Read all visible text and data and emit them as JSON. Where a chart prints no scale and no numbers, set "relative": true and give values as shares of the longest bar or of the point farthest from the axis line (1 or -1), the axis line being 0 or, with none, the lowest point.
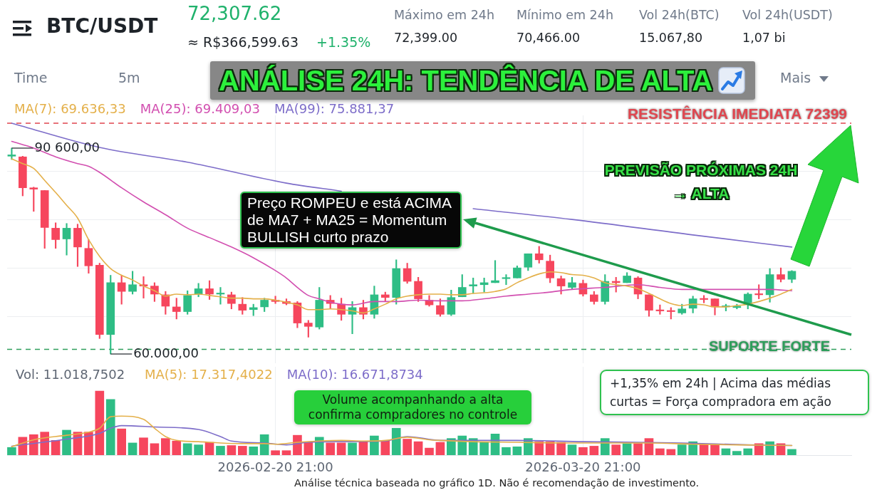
{
  "chart_data": [
    {
      "type": "candlestick",
      "title": "ANÁLISE 24H: TENDÊNCIA DE ALTA",
      "subtitle": "BTC/USDT",
      "x": [
        "2026-01-27T21:00",
        "2026-01-28T21:00",
        "2026-01-29T21:00",
        "2026-01-30T21:00",
        "2026-01-31T21:00",
        "2026-02-01T21:00",
        "2026-02-02T21:00",
        "2026-02-03T21:00",
        "2026-02-04T21:00",
        "2026-02-05T21:00",
        "2026-02-06T21:00",
        "2026-02-07T21:00",
        "2026-02-08T21:00",
        "2026-02-09T21:00",
        "2026-02-10T21:00",
        "2026-02-11T21:00",
        "2026-02-12T21:00",
        "2026-02-13T21:00",
        "2026-02-14T21:00",
        "2026-02-15T21:00",
        "2026-02-16T21:00",
        "2026-02-17T21:00",
        "2026-02-18T21:00",
        "2026-02-19T21:00",
        "2026-02-20T21:00",
        "2026-02-21T21:00",
        "2026-02-22T21:00",
        "2026-02-23T21:00",
        "2026-02-24T21:00",
        "2026-02-25T21:00",
        "2026-02-26T21:00",
        "2026-02-27T21:00",
        "2026-02-28T21:00",
        "2026-03-01T21:00",
        "2026-03-02T21:00",
        "2026-03-03T21:00",
        "2026-03-04T21:00",
        "2026-03-05T21:00",
        "2026-03-06T21:00",
        "2026-03-07T21:00",
        "2026-03-08T21:00",
        "2026-03-09T21:00",
        "2026-03-10T21:00",
        "2026-03-11T21:00",
        "2026-03-12T21:00",
        "2026-03-13T21:00",
        "2026-03-14T21:00",
        "2026-03-15T21:00",
        "2026-03-16T21:00",
        "2026-03-17T21:00",
        "2026-03-18T21:00",
        "2026-03-19T21:00",
        "2026-03-20T21:00",
        "2026-03-21T21:00",
        "2026-03-22T21:00",
        "2026-03-23T21:00",
        "2026-03-24T21:00",
        "2026-03-25T21:00",
        "2026-03-26T21:00",
        "2026-03-27T21:00",
        "2026-03-28T21:00",
        "2026-03-29T21:00",
        "2026-03-30T21:00",
        "2026-03-31T21:00",
        "2026-04-01T21:00",
        "2026-04-02T21:00",
        "2026-04-03T21:00",
        "2026-04-04T21:00",
        "2026-04-05T21:00",
        "2026-04-06T21:00",
        "2026-04-07T21:00",
        "2026-04-08T21:00"
      ],
      "ohlc": [
        [
          89400,
          90600,
          88900,
          89600
        ],
        [
          89300,
          89400,
          83500,
          84700
        ],
        [
          84700,
          84800,
          81200,
          84500
        ],
        [
          84300,
          84300,
          75700,
          78800
        ],
        [
          78700,
          79500,
          75700,
          77000
        ],
        [
          77100,
          79400,
          74700,
          78700
        ],
        [
          78700,
          79300,
          73000,
          75900
        ],
        [
          75700,
          77000,
          72000,
          73100
        ],
        [
          73200,
          73500,
          62300,
          62900
        ],
        [
          62900,
          71700,
          60000,
          70600
        ],
        [
          70600,
          71700,
          67400,
          69300
        ],
        [
          69300,
          72300,
          68900,
          70300
        ],
        [
          70300,
          71500,
          68300,
          70100
        ],
        [
          70100,
          70600,
          67800,
          68900
        ],
        [
          68800,
          69300,
          65900,
          67100
        ],
        [
          67000,
          68300,
          65200,
          66300
        ],
        [
          66300,
          69400,
          65900,
          68700
        ],
        [
          68900,
          70500,
          68500,
          69700
        ],
        [
          69700,
          70900,
          68100,
          68900
        ],
        [
          68900,
          69900,
          67400,
          69000
        ],
        [
          68800,
          69200,
          66700,
          67500
        ],
        [
          67400,
          68400,
          65900,
          66500
        ],
        [
          66600,
          67400,
          65700,
          66900
        ],
        [
          67000,
          68300,
          66300,
          68000
        ],
        [
          68000,
          68600,
          67500,
          67800
        ],
        [
          67800,
          68200,
          67300,
          67500
        ],
        [
          67600,
          67800,
          63900,
          64600
        ],
        [
          64600,
          65000,
          62500,
          64100
        ],
        [
          64000,
          69900,
          63700,
          68000
        ],
        [
          68000,
          68700,
          66700,
          67500
        ],
        [
          67400,
          68300,
          65000,
          65900
        ],
        [
          65900,
          67800,
          63000,
          66900
        ],
        [
          66900,
          68000,
          65200,
          65900
        ],
        [
          65900,
          70100,
          65300,
          68800
        ],
        [
          68800,
          69200,
          67800,
          68400
        ],
        [
          68400,
          74000,
          67400,
          72700
        ],
        [
          72700,
          73500,
          70500,
          70800
        ],
        [
          70800,
          71400,
          67800,
          68200
        ],
        [
          68000,
          68700,
          67100,
          67300
        ],
        [
          67200,
          68200,
          65600,
          65900
        ],
        [
          65900,
          69500,
          65700,
          68400
        ],
        [
          68500,
          71800,
          68500,
          69900
        ],
        [
          70100,
          71300,
          69000,
          70300
        ],
        [
          70300,
          71300,
          69200,
          70600
        ],
        [
          70600,
          73900,
          70600,
          70900
        ],
        [
          71200,
          71800,
          70300,
          71300
        ],
        [
          71300,
          73100,
          71300,
          72800
        ],
        [
          72900,
          74900,
          72400,
          74900
        ],
        [
          74900,
          76000,
          73500,
          74000
        ],
        [
          73800,
          74700,
          70600,
          71300
        ],
        [
          71200,
          71600,
          68900,
          70100
        ],
        [
          69900,
          71400,
          69600,
          70600
        ],
        [
          70500,
          71000,
          68600,
          68900
        ],
        [
          68800,
          69300,
          67400,
          67800
        ],
        [
          67800,
          71800,
          67400,
          70800
        ],
        [
          70800,
          71400,
          69200,
          70600
        ],
        [
          70600,
          72100,
          70600,
          71600
        ],
        [
          71300,
          71500,
          68200,
          68900
        ],
        [
          68800,
          68800,
          65600,
          66500
        ],
        [
          66500,
          67300,
          65900,
          66400
        ],
        [
          66400,
          66900,
          65200,
          66300
        ],
        [
          66100,
          67400,
          65900,
          66700
        ],
        [
          66800,
          68600,
          66100,
          68200
        ],
        [
          68200,
          68700,
          67600,
          68100
        ],
        [
          68200,
          68200,
          65800,
          67000
        ],
        [
          67000,
          67400,
          66400,
          67100
        ],
        [
          66900,
          67400,
          66700,
          67100
        ],
        [
          67400,
          69100,
          66700,
          68900
        ],
        [
          68900,
          70300,
          68200,
          68800
        ],
        [
          68800,
          72700,
          67700,
          71800
        ],
        [
          71800,
          72800,
          70700,
          71100
        ],
        [
          71100,
          72400,
          70600,
          72300
        ]
      ],
      "colors": [
        "#2ebd85",
        "#f6465d",
        "#f6465d",
        "#f6465d",
        "#f6465d",
        "#2ebd85",
        "#f6465d",
        "#f6465d",
        "#f6465d",
        "#2ebd85",
        "#f6465d",
        "#2ebd85",
        "#f6465d",
        "#f6465d",
        "#f6465d",
        "#f6465d",
        "#2ebd85",
        "#2ebd85",
        "#f6465d",
        "#2ebd85",
        "#f6465d",
        "#f6465d",
        "#2ebd85",
        "#2ebd85",
        "#f6465d",
        "#f6465d",
        "#f6465d",
        "#f6465d",
        "#2ebd85",
        "#f6465d",
        "#f6465d",
        "#2ebd85",
        "#f6465d",
        "#2ebd85",
        "#f6465d",
        "#2ebd85",
        "#f6465d",
        "#f6465d",
        "#f6465d",
        "#f6465d",
        "#2ebd85",
        "#2ebd85",
        "#2ebd85",
        "#2ebd85",
        "#2ebd85",
        "#2ebd85",
        "#2ebd85",
        "#2ebd85",
        "#f6465d",
        "#f6465d",
        "#f6465d",
        "#2ebd85",
        "#f6465d",
        "#f6465d",
        "#2ebd85",
        "#f6465d",
        "#2ebd85",
        "#f6465d",
        "#f6465d",
        "#f6465d",
        "#f6465d",
        "#2ebd85",
        "#2ebd85",
        "#f6465d",
        "#f6465d",
        "#2ebd85",
        "#2ebd85",
        "#2ebd85",
        "#f6465d",
        "#2ebd85",
        "#f6465d",
        "#2ebd85"
      ],
      "series": [
        {
          "type": "line",
          "name": "MA(7): 69.636,33",
          "color": "#e4b04a",
          "values": [
            89000,
            88300,
            87600,
            85800,
            84000,
            82100,
            80200,
            77000,
            74500,
            72700,
            71700,
            71000,
            70100,
            69400,
            68600,
            68900,
            68800,
            68900,
            68700,
            68500,
            68300,
            68300,
            68200,
            68200,
            68000,
            67700,
            67300,
            66600,
            66600,
            66700,
            66600,
            66400,
            66100,
            66700,
            67400,
            68200,
            68600,
            68800,
            68900,
            68900,
            68800,
            68800,
            69000,
            69100,
            69300,
            69700,
            70600,
            71300,
            71900,
            72200,
            72100,
            71800,
            71700,
            71300,
            70600,
            70300,
            70100,
            69700,
            69000,
            68200,
            67500,
            67200,
            67400,
            67300,
            67000,
            67000,
            67200,
            67400,
            67800,
            68300,
            68900,
            69600
          ]
        },
        {
          "type": "line",
          "name": "MA(25): 69.409,03",
          "color": "#d24fb0",
          "x": [
            "2026-01-27T21:00",
            "2026-01-29T21:00",
            "2026-01-31T21:00",
            "2026-02-02T21:00",
            "2026-02-03T21:00",
            "2026-02-04T21:00",
            "2026-02-06T21:00",
            "2026-02-08T21:00",
            "2026-02-10T21:00",
            "2026-02-12T21:00",
            "2026-02-14T21:00",
            "2026-02-16T21:00",
            "2026-02-18T21:00",
            "2026-02-20T21:00",
            "2026-02-21T21:00",
            "2026-02-22T21:00",
            "2026-02-23T21:00",
            "2026-02-24T21:00",
            "2026-02-25T21:00",
            "2026-02-26T21:00",
            "2026-02-27T21:00",
            "2026-03-01T21:00",
            "2026-03-03T21:00",
            "2026-03-05T21:00",
            "2026-03-07T21:00",
            "2026-03-09T21:00",
            "2026-03-11T21:00",
            "2026-03-13T21:00",
            "2026-03-15T21:00",
            "2026-03-17T21:00",
            "2026-03-19T21:00",
            "2026-03-22T21:00",
            "2026-03-25T21:00",
            "2026-03-27T21:00",
            "2026-03-29T21:00",
            "2026-03-31T21:00",
            "2026-04-03T21:00",
            "2026-04-06T21:00",
            "2026-04-08T21:00"
          ],
          "values": [
            91600,
            90600,
            89300,
            88300,
            87900,
            87000,
            84700,
            82600,
            80700,
            78700,
            77300,
            75900,
            74300,
            72400,
            71300,
            69900,
            68700,
            68200,
            67700,
            67400,
            67300,
            67800,
            67800,
            68000,
            67900,
            67900,
            68200,
            68600,
            68900,
            69200,
            69600,
            69900,
            70300,
            69900,
            69600,
            69600,
            69600,
            69600,
            69400
          ]
        },
        {
          "type": "line",
          "name": "MA(99): 75.881,37",
          "color": "#7d6dc9",
          "x": [
            "2026-01-27T21:00",
            "2026-02-04T21:00",
            "2026-02-12T21:00",
            "2026-02-21T21:00",
            "2026-02-26T21:00",
            "2026-03-03T21:00",
            "2026-03-10T21:00",
            "2026-03-19T21:00",
            "2026-03-30T21:00",
            "2026-04-08T21:00"
          ],
          "values": [
            94300,
            90700,
            88500,
            85400,
            84200,
            null,
            81600,
            80000,
            77700,
            75900
          ]
        }
      ],
      "ref_lines": [
        {
          "axis": "y",
          "value": 94300,
          "label": "RESISTÊNCIA IMEDIATA 72399",
          "color": "#e0464f",
          "line_style": "dashed"
        },
        {
          "axis": "y",
          "value": 60700,
          "label": "SUPORTE FORTE",
          "color": "#2e9e5b",
          "line_style": "dashed"
        }
      ],
      "xlim": [
        "2026-01-27T11:00",
        "2026-04-14T07:00"
      ],
      "xticks": [
        {
          "value": "2026-02-20T21:00",
          "label": null
        },
        {
          "value": "2026-03-20T21:00",
          "label": null
        }
      ],
      "yticks": [
        {
          "value": 87200,
          "label": null
        },
        {
          "value": 80000,
          "label": null
        },
        {
          "value": 72800,
          "label": null
        },
        {
          "value": 65600,
          "label": null
        }
      ],
      "grid": true,
      "legend": "top left",
      "tick_labels": false,
      "annotations": [
        "72,307.62",
        "≈ R$366,599.63",
        "+1.35%",
        "Máximo em 24h",
        "72,399.00",
        "Mínimo em 24h",
        "70,466.00",
        "Vol 24h(BTC)",
        "15.067,80",
        "Vol 24h(USDT)",
        "1,07 bi",
        "Time",
        "5m",
        "Mais",
        "Preço ROMPEU e está ACIMA de MA7 + MA25 = Momentum BULLISH curto prazo",
        "PREVISÃO PRÓXIMAS 24H → ALTA",
        {
          "text": "90 600,00",
          "x": "2026-01-27T21:00",
          "y": 90600
        },
        {
          "text": "60.000,00",
          "x": "2026-02-05T21:00",
          "y": 60000
        }
      ]
    },
    {
      "type": "bar",
      "relative": true,
      "x": [
        "2026-01-27T21:00",
        "2026-01-28T21:00",
        "2026-01-29T21:00",
        "2026-01-30T21:00",
        "2026-01-31T21:00",
        "2026-02-01T21:00",
        "2026-02-02T21:00",
        "2026-02-03T21:00",
        "2026-02-04T21:00",
        "2026-02-05T21:00",
        "2026-02-06T21:00",
        "2026-02-07T21:00",
        "2026-02-08T21:00",
        "2026-02-09T21:00",
        "2026-02-10T21:00",
        "2026-02-11T21:00",
        "2026-02-12T21:00",
        "2026-02-13T21:00",
        "2026-02-14T21:00",
        "2026-02-15T21:00",
        "2026-02-16T21:00",
        "2026-02-17T21:00",
        "2026-02-18T21:00",
        "2026-02-19T21:00",
        "2026-02-20T21:00",
        "2026-02-21T21:00",
        "2026-02-22T21:00",
        "2026-02-23T21:00",
        "2026-02-24T21:00",
        "2026-02-25T21:00",
        "2026-02-26T21:00",
        "2026-02-27T21:00",
        "2026-02-28T21:00",
        "2026-03-01T21:00",
        "2026-03-02T21:00",
        "2026-03-03T21:00",
        "2026-03-04T21:00",
        "2026-03-05T21:00",
        "2026-03-06T21:00",
        "2026-03-07T21:00",
        "2026-03-08T21:00",
        "2026-03-09T21:00",
        "2026-03-10T21:00",
        "2026-03-11T21:00",
        "2026-03-12T21:00",
        "2026-03-13T21:00",
        "2026-03-14T21:00",
        "2026-03-15T21:00",
        "2026-03-16T21:00",
        "2026-03-17T21:00",
        "2026-03-18T21:00",
        "2026-03-19T21:00",
        "2026-03-20T21:00",
        "2026-03-21T21:00",
        "2026-03-22T21:00",
        "2026-03-23T21:00",
        "2026-03-24T21:00",
        "2026-03-25T21:00",
        "2026-03-26T21:00",
        "2026-03-27T21:00",
        "2026-03-28T21:00",
        "2026-03-29T21:00",
        "2026-03-30T21:00",
        "2026-03-31T21:00",
        "2026-04-01T21:00",
        "2026-04-02T21:00",
        "2026-04-03T21:00",
        "2026-04-04T21:00",
        "2026-04-05T21:00",
        "2026-04-06T21:00",
        "2026-04-07T21:00",
        "2026-04-08T21:00"
      ],
      "series": [
        {
          "colors": [
            "#2ebd85",
            "#f6465d",
            "#f6465d",
            "#f6465d",
            "#f6465d",
            "#2ebd85",
            "#f6465d",
            "#f6465d",
            "#f6465d",
            "#2ebd85",
            "#f6465d",
            "#2ebd85",
            "#f6465d",
            "#f6465d",
            "#f6465d",
            "#f6465d",
            "#2ebd85",
            "#2ebd85",
            "#f6465d",
            "#2ebd85",
            "#f6465d",
            "#f6465d",
            "#2ebd85",
            "#2ebd85",
            "#f6465d",
            "#f6465d",
            "#f6465d",
            "#f6465d",
            "#2ebd85",
            "#f6465d",
            "#f6465d",
            "#2ebd85",
            "#f6465d",
            "#2ebd85",
            "#f6465d",
            "#2ebd85",
            "#f6465d",
            "#f6465d",
            "#f6465d",
            "#f6465d",
            "#2ebd85",
            "#2ebd85",
            "#2ebd85",
            "#2ebd85",
            "#2ebd85",
            "#2ebd85",
            "#2ebd85",
            "#2ebd85",
            "#f6465d",
            "#f6465d",
            "#f6465d",
            "#2ebd85",
            "#f6465d",
            "#f6465d",
            "#2ebd85",
            "#f6465d",
            "#2ebd85",
            "#f6465d",
            "#f6465d",
            "#f6465d",
            "#f6465d",
            "#2ebd85",
            "#2ebd85",
            "#f6465d",
            "#f6465d",
            "#2ebd85",
            "#2ebd85",
            "#2ebd85",
            "#f6465d",
            "#2ebd85",
            "#f6465d",
            "#2ebd85"
          ],
          "values": [
            0.12,
            0.28,
            0.32,
            0.36,
            0.23,
            0.39,
            0.36,
            0.36,
            1,
            0.87,
            0.41,
            0.19,
            0.27,
            0.18,
            0.26,
            0.22,
            0.18,
            0.16,
            0.2,
            0.14,
            0.15,
            0.14,
            0.13,
            0.32,
            0.07,
            0.07,
            0.31,
            0.2,
            0.28,
            0.19,
            0.19,
            0.19,
            0.21,
            0.3,
            0.22,
            0.42,
            0.25,
            0.21,
            0.11,
            0.2,
            0.26,
            0.3,
            0.26,
            0.2,
            0.33,
            0.12,
            0.13,
            0.26,
            0.21,
            0.21,
            0.2,
            0.16,
            0.12,
            0.14,
            0.26,
            0.16,
            0.18,
            0.18,
            0.26,
            0.1,
            0.09,
            0.16,
            0.21,
            0.17,
            0.16,
            0.1,
            0.06,
            0.1,
            0.18,
            0.21,
            0.18,
            0.09
          ]
        },
        {
          "type": "line",
          "name": "MA(5): 17.317,4022",
          "color": "#e4b04a",
          "x": [
            "2026-01-27T21:00",
            "2026-01-29T21:00",
            "2026-02-01T21:00",
            "2026-02-03T21:00",
            "2026-02-04T21:00",
            "2026-02-05T21:00",
            "2026-02-06T21:00",
            "2026-02-08T21:00",
            "2026-02-09T21:00",
            "2026-02-10T21:00",
            "2026-02-11T21:00",
            "2026-02-13T21:00",
            "2026-02-15T21:00",
            "2026-02-17T21:00",
            "2026-02-19T21:00",
            "2026-02-20T21:00",
            "2026-02-22T21:00",
            "2026-02-24T21:00",
            "2026-02-26T21:00",
            "2026-02-28T21:00",
            "2026-03-02T21:00",
            "2026-03-04T21:00",
            "2026-03-06T21:00",
            "2026-03-07T21:00",
            "2026-03-10T21:00",
            "2026-03-14T21:00",
            "2026-03-18T21:00",
            "2026-03-22T21:00",
            "2026-03-26T21:00",
            "2026-03-30T21:00",
            "2026-04-03T21:00",
            "2026-04-08T21:00"
          ],
          "values": [
            0.13,
            0.24,
            0.31,
            0.36,
            0.42,
            0.6,
            0.61,
            0.56,
            0.42,
            0.29,
            0.23,
            0.21,
            0.19,
            0.18,
            0.18,
            0.17,
            0.2,
            0.22,
            0.23,
            0.22,
            0.23,
            0.28,
            0.24,
            0.23,
            0.21,
            0.2,
            0.19,
            0.19,
            0.19,
            0.17,
            0.16,
            0.15
          ]
        },
        {
          "type": "line",
          "name": "MA(10): 16.671,8734",
          "color": "#7d6dc9",
          "x": [
            "2026-01-27T21:00",
            "2026-02-01T21:00",
            "2026-02-04T21:00",
            "2026-02-05T21:00",
            "2026-02-06T21:00",
            "2026-02-09T21:00",
            "2026-02-13T21:00",
            "2026-02-15T21:00",
            "2026-02-16T21:00",
            "2026-02-19T21:00",
            "2026-02-21T21:00",
            "2026-02-23T21:00",
            "2026-02-26T21:00",
            "2026-03-02T21:00",
            "2026-03-04T21:00",
            "2026-03-07T21:00",
            "2026-03-14T21:00",
            "2026-03-20T21:00",
            "2026-03-29T21:00",
            "2026-04-04T21:00",
            "2026-04-08T21:00"
          ],
          "values": [
            0.14,
            0.25,
            0.34,
            0.42,
            0.46,
            0.44,
            0.4,
            0.29,
            0.22,
            0.19,
            0.16,
            0.2,
            0.21,
            0.22,
            0.29,
            0.23,
            0.23,
            0.21,
            0.19,
            0.16,
            0.15
          ]
        }
      ],
      "xlim": [
        "2026-01-27T11:00",
        "2026-04-14T07:00"
      ],
      "xticks": [
        {
          "value": "2026-02-20T21:00",
          "label": "2026-02-20 21:00"
        },
        {
          "value": "2026-03-20T21:00",
          "label": "2026-03-20 21:00"
        }
      ],
      "grid": "x",
      "legend": "top left",
      "tick_labels": "x",
      "annotations": [
        "Vol: 11.018,7502",
        "Volume acompanhando a alta confirma compradores no controle",
        "+1,35% em 24h | Acima das médias curtas = Força compradora em ação",
        "Análise técnica baseada no gráfico 1D. Não é recomendação de investimento."
      ]
    }
  ]
}
